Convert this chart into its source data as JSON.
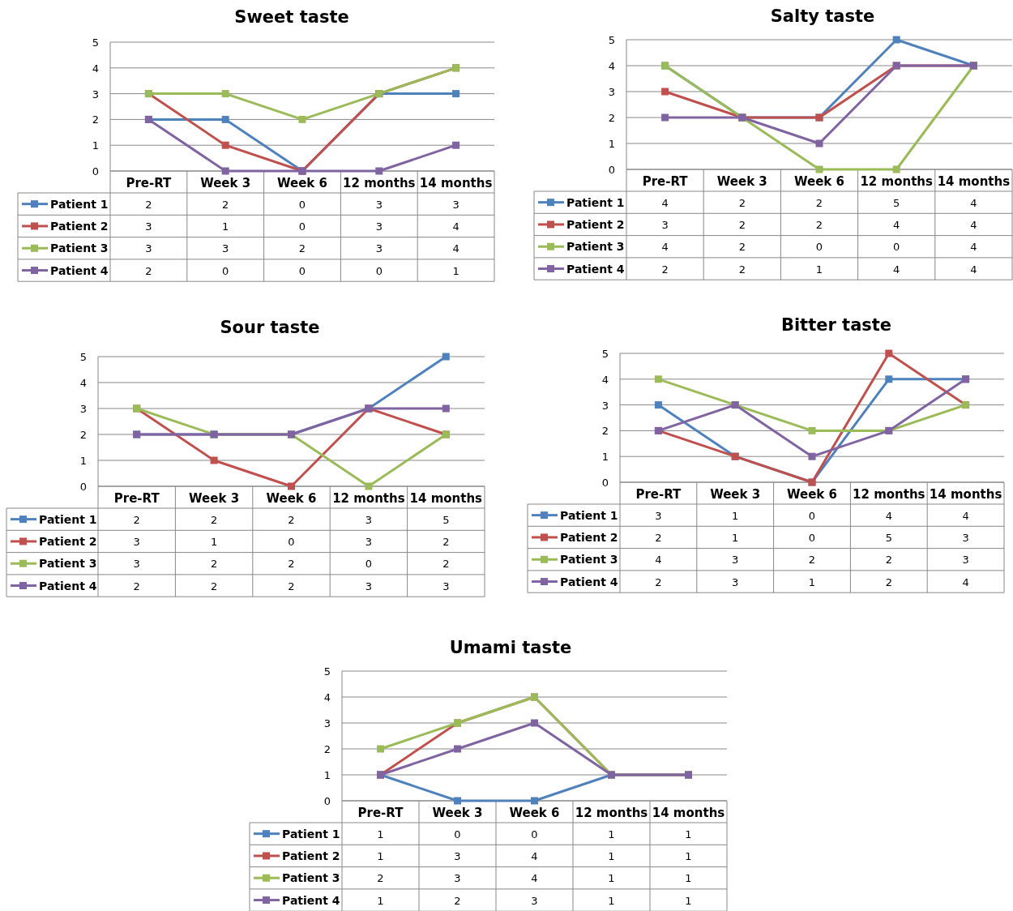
{
  "chart_data": [
    {
      "type": "line",
      "title": "Sweet taste",
      "categories": [
        "Pre-RT",
        "Week 3",
        "Week 6",
        "12 months",
        "14 months"
      ],
      "ylim": [
        0,
        5
      ],
      "yticks": [
        0,
        1,
        2,
        3,
        4,
        5
      ],
      "grid": "y",
      "marker": "square",
      "legend": "bottom",
      "data_labels": true,
      "series": [
        {
          "name": "Patient 1",
          "color": "#4f81bd",
          "values": [
            2,
            2,
            0,
            3,
            3
          ]
        },
        {
          "name": "Patient 2",
          "color": "#c0504d",
          "values": [
            3,
            1,
            0,
            3,
            4
          ]
        },
        {
          "name": "Patient 3",
          "color": "#9bbb59",
          "values": [
            3,
            3,
            2,
            3,
            4
          ]
        },
        {
          "name": "Patient 4",
          "color": "#8064a2",
          "values": [
            2,
            0,
            0,
            0,
            1
          ]
        }
      ]
    },
    {
      "type": "line",
      "title": "Salty taste",
      "categories": [
        "Pre-RT",
        "Week 3",
        "Week 6",
        "12 months",
        "14 months"
      ],
      "ylim": [
        0,
        5
      ],
      "yticks": [
        0,
        1,
        2,
        3,
        4,
        5
      ],
      "grid": "y",
      "marker": "square",
      "legend": "bottom",
      "data_labels": true,
      "series": [
        {
          "name": "Patient 1",
          "color": "#4f81bd",
          "values": [
            4,
            2,
            2,
            5,
            4
          ]
        },
        {
          "name": "Patient 2",
          "color": "#c0504d",
          "values": [
            3,
            2,
            2,
            4,
            4
          ]
        },
        {
          "name": "Patient 3",
          "color": "#9bbb59",
          "values": [
            4,
            2,
            0,
            0,
            4
          ]
        },
        {
          "name": "Patient 4",
          "color": "#8064a2",
          "values": [
            2,
            2,
            1,
            4,
            4
          ]
        }
      ]
    },
    {
      "type": "line",
      "title": "Sour taste",
      "categories": [
        "Pre-RT",
        "Week 3",
        "Week 6",
        "12 months",
        "14 months"
      ],
      "ylim": [
        0,
        5
      ],
      "yticks": [
        0,
        1,
        2,
        3,
        4,
        5
      ],
      "grid": "y",
      "marker": "square",
      "legend": "bottom",
      "data_labels": true,
      "series": [
        {
          "name": "Patient 1",
          "color": "#4f81bd",
          "values": [
            2,
            2,
            2,
            3,
            5
          ]
        },
        {
          "name": "Patient 2",
          "color": "#c0504d",
          "values": [
            3,
            1,
            0,
            3,
            2
          ]
        },
        {
          "name": "Patient 3",
          "color": "#9bbb59",
          "values": [
            3,
            2,
            2,
            0,
            2
          ]
        },
        {
          "name": "Patient 4",
          "color": "#8064a2",
          "values": [
            2,
            2,
            2,
            3,
            3
          ]
        }
      ]
    },
    {
      "type": "line",
      "title": "Bitter taste",
      "categories": [
        "Pre-RT",
        "Week 3",
        "Week 6",
        "12 months",
        "14 months"
      ],
      "ylim": [
        0,
        5
      ],
      "yticks": [
        0,
        1,
        2,
        3,
        4,
        5
      ],
      "grid": "y",
      "marker": "square",
      "legend": "bottom",
      "data_labels": true,
      "series": [
        {
          "name": "Patient 1",
          "color": "#4f81bd",
          "values": [
            3,
            1,
            0,
            4,
            4
          ]
        },
        {
          "name": "Patient 2",
          "color": "#c0504d",
          "values": [
            2,
            1,
            0,
            5,
            3
          ]
        },
        {
          "name": "Patient 3",
          "color": "#9bbb59",
          "values": [
            4,
            3,
            2,
            2,
            3
          ]
        },
        {
          "name": "Patient 4",
          "color": "#8064a2",
          "values": [
            2,
            3,
            1,
            2,
            4
          ]
        }
      ]
    },
    {
      "type": "line",
      "title": "Umami taste",
      "categories": [
        "Pre-RT",
        "Week 3",
        "Week 6",
        "12 months",
        "14 months"
      ],
      "ylim": [
        0,
        5
      ],
      "yticks": [
        0,
        1,
        2,
        3,
        4,
        5
      ],
      "grid": "y",
      "marker": "square",
      "legend": "bottom",
      "data_labels": true,
      "series": [
        {
          "name": "Patient 1",
          "color": "#4f81bd",
          "values": [
            1,
            0,
            0,
            1,
            1
          ]
        },
        {
          "name": "Patient 2",
          "color": "#c0504d",
          "values": [
            1,
            3,
            4,
            1,
            1
          ]
        },
        {
          "name": "Patient 3",
          "color": "#9bbb59",
          "values": [
            2,
            3,
            4,
            1,
            1
          ]
        },
        {
          "name": "Patient 4",
          "color": "#8064a2",
          "values": [
            1,
            2,
            3,
            1,
            1
          ]
        }
      ]
    }
  ]
}
